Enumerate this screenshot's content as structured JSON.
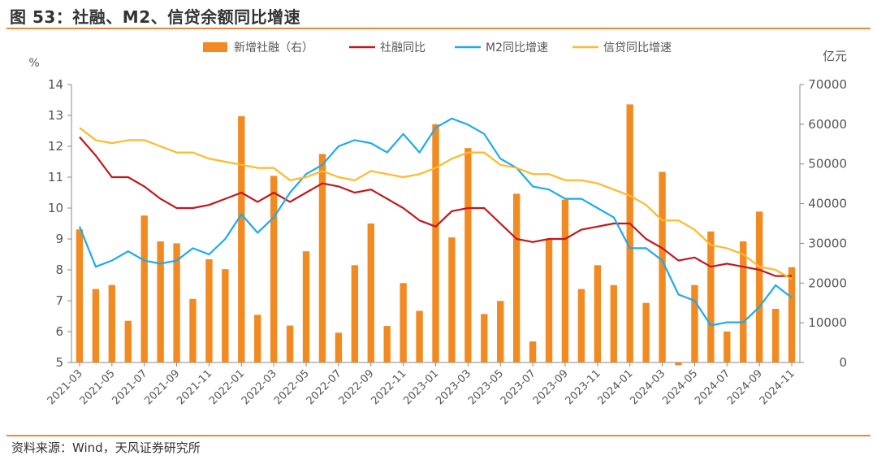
{
  "title": "图 53：社融、M2、信贷余额同比增速",
  "source": "资料来源：Wind，天风证券研究所",
  "chart_data": {
    "type": "bar+line",
    "left_axis_unit": "%",
    "right_axis_unit": "亿元",
    "ylim_left": [
      5,
      14
    ],
    "ylim_right": [
      0,
      70000
    ],
    "left_ticks": [
      5,
      6,
      7,
      8,
      9,
      10,
      11,
      12,
      13,
      14
    ],
    "right_ticks": [
      0,
      10000,
      20000,
      30000,
      40000,
      50000,
      60000,
      70000
    ],
    "x_tick_labels": [
      "2021-03",
      "2021-05",
      "2021-07",
      "2021-09",
      "2021-11",
      "2022-01",
      "2022-03",
      "2022-05",
      "2022-07",
      "2022-09",
      "2022-11",
      "2023-01",
      "2023-03",
      "2023-05",
      "2023-07",
      "2023-09",
      "2023-11",
      "2024-01",
      "2024-03",
      "2024-05",
      "2024-07",
      "2024-09",
      "2024-11"
    ],
    "months": [
      "2021-03",
      "2021-04",
      "2021-05",
      "2021-06",
      "2021-07",
      "2021-08",
      "2021-09",
      "2021-10",
      "2021-11",
      "2021-12",
      "2022-01",
      "2022-02",
      "2022-03",
      "2022-04",
      "2022-05",
      "2022-06",
      "2022-07",
      "2022-08",
      "2022-09",
      "2022-10",
      "2022-11",
      "2022-12",
      "2023-01",
      "2023-02",
      "2023-03",
      "2023-04",
      "2023-05",
      "2023-06",
      "2023-07",
      "2023-08",
      "2023-09",
      "2023-10",
      "2023-11",
      "2023-12",
      "2024-01",
      "2024-02",
      "2024-03",
      "2024-04",
      "2024-05",
      "2024-06",
      "2024-07",
      "2024-08",
      "2024-09",
      "2024-10",
      "2024-11"
    ],
    "series": [
      {
        "name": "新增社融（右）",
        "kind": "bar",
        "axis": "right",
        "color": "#f28a22",
        "values": [
          33500,
          18500,
          19500,
          10500,
          37000,
          30500,
          30000,
          16000,
          26000,
          23500,
          62000,
          12000,
          47000,
          9300,
          28000,
          52500,
          7500,
          24500,
          35000,
          9200,
          20000,
          13000,
          60000,
          31500,
          54000,
          12200,
          15500,
          42500,
          5300,
          31000,
          41000,
          18500,
          24500,
          19500,
          65000,
          15000,
          48000,
          -700,
          19500,
          33000,
          7800,
          30500,
          38000,
          13500,
          24000
        ]
      },
      {
        "name": "社融同比",
        "kind": "line",
        "axis": "left",
        "color": "#c0181e",
        "values": [
          12.3,
          11.7,
          11.0,
          11.0,
          10.7,
          10.3,
          10.0,
          10.0,
          10.1,
          10.3,
          10.5,
          10.2,
          10.5,
          10.2,
          10.5,
          10.8,
          10.7,
          10.5,
          10.6,
          10.3,
          10.0,
          9.6,
          9.4,
          9.9,
          10.0,
          10.0,
          9.5,
          9.0,
          8.9,
          9.0,
          9.0,
          9.3,
          9.4,
          9.5,
          9.5,
          9.0,
          8.7,
          8.3,
          8.4,
          8.1,
          8.2,
          8.1,
          8.0,
          7.8,
          7.8
        ]
      },
      {
        "name": "M2同比增速",
        "kind": "line",
        "axis": "left",
        "color": "#1eaaeb",
        "values": [
          9.4,
          8.1,
          8.3,
          8.6,
          8.3,
          8.2,
          8.3,
          8.7,
          8.5,
          9.0,
          9.8,
          9.2,
          9.7,
          10.5,
          11.1,
          11.4,
          12.0,
          12.2,
          12.1,
          11.8,
          12.4,
          11.8,
          12.6,
          12.9,
          12.7,
          12.4,
          11.6,
          11.3,
          10.7,
          10.6,
          10.3,
          10.3,
          10.0,
          9.7,
          8.7,
          8.7,
          8.3,
          7.2,
          7.0,
          6.2,
          6.3,
          6.3,
          6.8,
          7.5,
          7.1
        ]
      },
      {
        "name": "信贷同比增速",
        "kind": "line",
        "axis": "left",
        "color": "#ffb92a",
        "values": [
          12.6,
          12.2,
          12.1,
          12.2,
          12.2,
          12.0,
          11.8,
          11.8,
          11.6,
          11.5,
          11.4,
          11.3,
          11.3,
          10.9,
          11.0,
          11.2,
          11.0,
          10.9,
          11.2,
          11.1,
          11.0,
          11.1,
          11.3,
          11.6,
          11.8,
          11.8,
          11.4,
          11.3,
          11.1,
          11.1,
          10.9,
          10.9,
          10.8,
          10.6,
          10.4,
          10.1,
          9.6,
          9.6,
          9.3,
          8.8,
          8.7,
          8.5,
          8.1,
          8.0,
          7.7
        ]
      }
    ]
  }
}
